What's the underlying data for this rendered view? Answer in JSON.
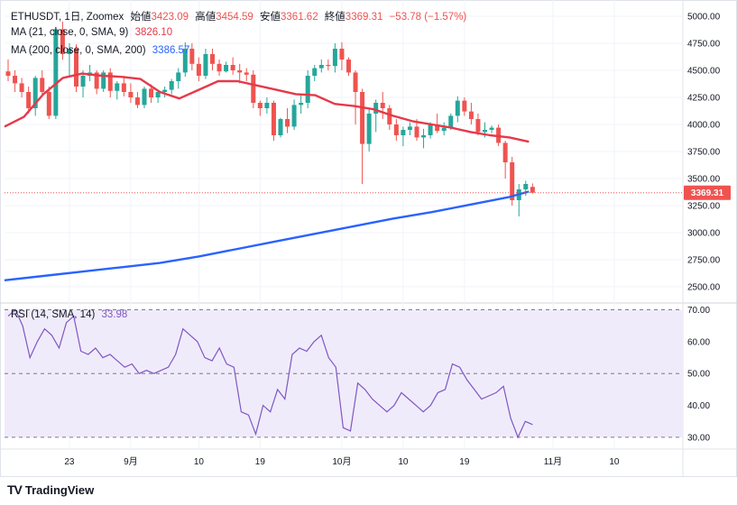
{
  "legend": {
    "symbol": "ETHUSDT, 1日, Zoomex",
    "open_label": "始値",
    "open": "3423.09",
    "high_label": "高値",
    "high": "3454.59",
    "low_label": "安値",
    "low": "3361.62",
    "close_label": "終値",
    "close": "3369.31",
    "change": "−53.78 (−1.57%)",
    "ma21_label": "MA (21, close, 0, SMA, 9)",
    "ma21_value": "3826.10",
    "ma200_label": "MA (200, close, 0, SMA, 200)",
    "ma200_value": "3386.57",
    "rsi_label": "RSI (14, SMA, 14)",
    "rsi_value": "33.98"
  },
  "price_tag": "3369.31",
  "footer": {
    "logo": "TV",
    "brand": "TradingView"
  },
  "colors": {
    "up": "#26a69a",
    "down": "#ef5350",
    "ma21": "#e5394a",
    "ma200": "#2962ff",
    "rsi": "#7e57c2",
    "rsi_fill": "#f0ebfa"
  },
  "chart_data": [
    {
      "type": "candlestick",
      "y_ticks": [
        "5000.00",
        "4750.00",
        "4500.00",
        "4250.00",
        "4000.00",
        "3750.00",
        "3500.00",
        "3250.00",
        "3000.00",
        "2750.00",
        "2500.00"
      ],
      "ylim": [
        2450,
        5000
      ],
      "x_ticks": [
        {
          "label": "23",
          "index": 9
        },
        {
          "label": "9月",
          "index": 18
        },
        {
          "label": "10",
          "index": 28
        },
        {
          "label": "19",
          "index": 37
        },
        {
          "label": "10月",
          "index": 49
        },
        {
          "label": "10",
          "index": 58
        },
        {
          "label": "19",
          "index": 67
        },
        {
          "label": "11月",
          "index": 80
        },
        {
          "label": "10",
          "index": 89
        }
      ],
      "candles": [
        [
          4490,
          4600,
          4400,
          4450
        ],
        [
          4450,
          4500,
          4300,
          4380
        ],
        [
          4380,
          4430,
          4250,
          4300
        ],
        [
          4300,
          4350,
          4100,
          4150
        ],
        [
          4150,
          4450,
          4080,
          4430
        ],
        [
          4430,
          4500,
          4280,
          4300
        ],
        [
          4300,
          4350,
          4050,
          4080
        ],
        [
          4080,
          4900,
          4050,
          4880
        ],
        [
          4880,
          4950,
          4600,
          4650
        ],
        [
          4650,
          4750,
          4450,
          4700
        ],
        [
          4700,
          4740,
          4300,
          4350
        ],
        [
          4350,
          4500,
          4250,
          4450
        ],
        [
          4450,
          4550,
          4400,
          4480
        ],
        [
          4480,
          4500,
          4280,
          4330
        ],
        [
          4330,
          4500,
          4300,
          4480
        ],
        [
          4480,
          4520,
          4250,
          4310
        ],
        [
          4310,
          4400,
          4230,
          4380
        ],
        [
          4380,
          4450,
          4260,
          4300
        ],
        [
          4300,
          4380,
          4200,
          4250
        ],
        [
          4250,
          4300,
          4150,
          4180
        ],
        [
          4180,
          4350,
          4150,
          4330
        ],
        [
          4330,
          4370,
          4200,
          4250
        ],
        [
          4250,
          4320,
          4200,
          4300
        ],
        [
          4300,
          4350,
          4250,
          4320
        ],
        [
          4320,
          4420,
          4280,
          4400
        ],
        [
          4400,
          4520,
          4330,
          4480
        ],
        [
          4480,
          4760,
          4440,
          4700
        ],
        [
          4700,
          4750,
          4500,
          4560
        ],
        [
          4560,
          4620,
          4400,
          4450
        ],
        [
          4450,
          4700,
          4420,
          4650
        ],
        [
          4650,
          4700,
          4500,
          4560
        ],
        [
          4560,
          4600,
          4450,
          4490
        ],
        [
          4490,
          4580,
          4480,
          4550
        ],
        [
          4550,
          4620,
          4460,
          4500
        ],
        [
          4500,
          4560,
          4380,
          4480
        ],
        [
          4480,
          4520,
          4400,
          4460
        ],
        [
          4460,
          4500,
          4150,
          4200
        ],
        [
          4200,
          4220,
          4080,
          4150
        ],
        [
          4150,
          4250,
          4100,
          4200
        ],
        [
          4200,
          4220,
          3850,
          3900
        ],
        [
          3900,
          4060,
          3880,
          4050
        ],
        [
          4050,
          4150,
          3920,
          3980
        ],
        [
          3980,
          4230,
          3950,
          4180
        ],
        [
          4180,
          4280,
          4100,
          4200
        ],
        [
          4200,
          4500,
          4150,
          4450
        ],
        [
          4450,
          4550,
          4400,
          4520
        ],
        [
          4520,
          4600,
          4480,
          4550
        ],
        [
          4550,
          4600,
          4500,
          4540
        ],
        [
          4540,
          4750,
          4480,
          4700
        ],
        [
          4700,
          4760,
          4500,
          4600
        ],
        [
          4600,
          4620,
          4450,
          4480
        ],
        [
          4480,
          4500,
          4000,
          4300
        ],
        [
          4300,
          4330,
          3450,
          3820
        ],
        [
          3820,
          4150,
          3750,
          4100
        ],
        [
          4100,
          4230,
          3930,
          4200
        ],
        [
          4200,
          4300,
          4050,
          4150
        ],
        [
          4150,
          4180,
          3950,
          4000
        ],
        [
          4000,
          4050,
          3850,
          3900
        ],
        [
          3900,
          3980,
          3800,
          3950
        ],
        [
          3950,
          4020,
          3900,
          3980
        ],
        [
          3980,
          4050,
          3850,
          3880
        ],
        [
          3880,
          3960,
          3780,
          3900
        ],
        [
          3900,
          4020,
          3870,
          4000
        ],
        [
          4000,
          4100,
          3920,
          3940
        ],
        [
          3940,
          4020,
          3900,
          3970
        ],
        [
          3970,
          4100,
          3950,
          4080
        ],
        [
          4080,
          4260,
          4020,
          4220
        ],
        [
          4220,
          4250,
          4080,
          4120
        ],
        [
          4120,
          4200,
          4000,
          4050
        ],
        [
          4050,
          4100,
          3900,
          3930
        ],
        [
          3930,
          4020,
          3880,
          3950
        ],
        [
          3950,
          3990,
          3920,
          3970
        ],
        [
          3970,
          4000,
          3800,
          3830
        ],
        [
          3830,
          3850,
          3500,
          3650
        ],
        [
          3650,
          3700,
          3250,
          3300
        ],
        [
          3300,
          3450,
          3150,
          3400
        ],
        [
          3400,
          3480,
          3340,
          3450
        ],
        [
          3423,
          3455,
          3362,
          3369
        ]
      ],
      "ma21": [
        [
          0,
          3980
        ],
        [
          5,
          4070
        ],
        [
          10,
          4280
        ],
        [
          15,
          4430
        ],
        [
          20,
          4470
        ],
        [
          25,
          4450
        ],
        [
          30,
          4440
        ],
        [
          35,
          4420
        ],
        [
          40,
          4300
        ],
        [
          45,
          4240
        ],
        [
          50,
          4320
        ],
        [
          55,
          4400
        ],
        [
          60,
          4400
        ],
        [
          65,
          4360
        ],
        [
          70,
          4320
        ],
        [
          75,
          4280
        ],
        [
          80,
          4270
        ],
        [
          85,
          4190
        ],
        [
          90,
          4170
        ],
        [
          95,
          4140
        ],
        [
          100,
          4080
        ],
        [
          105,
          4030
        ],
        [
          110,
          4000
        ],
        [
          115,
          3970
        ],
        [
          120,
          3930
        ],
        [
          125,
          3900
        ],
        [
          130,
          3880
        ],
        [
          135,
          3840
        ]
      ],
      "ma200": [
        [
          0,
          2560
        ],
        [
          10,
          2600
        ],
        [
          20,
          2640
        ],
        [
          30,
          2680
        ],
        [
          40,
          2720
        ],
        [
          50,
          2780
        ],
        [
          60,
          2850
        ],
        [
          70,
          2920
        ],
        [
          80,
          2990
        ],
        [
          90,
          3060
        ],
        [
          100,
          3130
        ],
        [
          110,
          3190
        ],
        [
          120,
          3260
        ],
        [
          130,
          3330
        ],
        [
          135,
          3380
        ]
      ]
    },
    {
      "type": "line",
      "name": "RSI",
      "y_ticks": [
        "70.00",
        "60.00",
        "50.00",
        "40.00",
        "30.00"
      ],
      "ylim": [
        28,
        71
      ],
      "bands": [
        30,
        70
      ],
      "mid": 50,
      "values": [
        68,
        70,
        65,
        55,
        60,
        64,
        62,
        58,
        66,
        68,
        57,
        56,
        58,
        55,
        56,
        54,
        52,
        53,
        50,
        51,
        50,
        51,
        52,
        56,
        64,
        62,
        60,
        55,
        54,
        58,
        53,
        52,
        38,
        37,
        31,
        40,
        38,
        45,
        42,
        56,
        58,
        57,
        60,
        62,
        55,
        52,
        33,
        32,
        47,
        45,
        42,
        40,
        38,
        40,
        44,
        42,
        40,
        38,
        40,
        44,
        45,
        53,
        52,
        48,
        45,
        42,
        43,
        44,
        46,
        36,
        30,
        35,
        34
      ]
    }
  ]
}
